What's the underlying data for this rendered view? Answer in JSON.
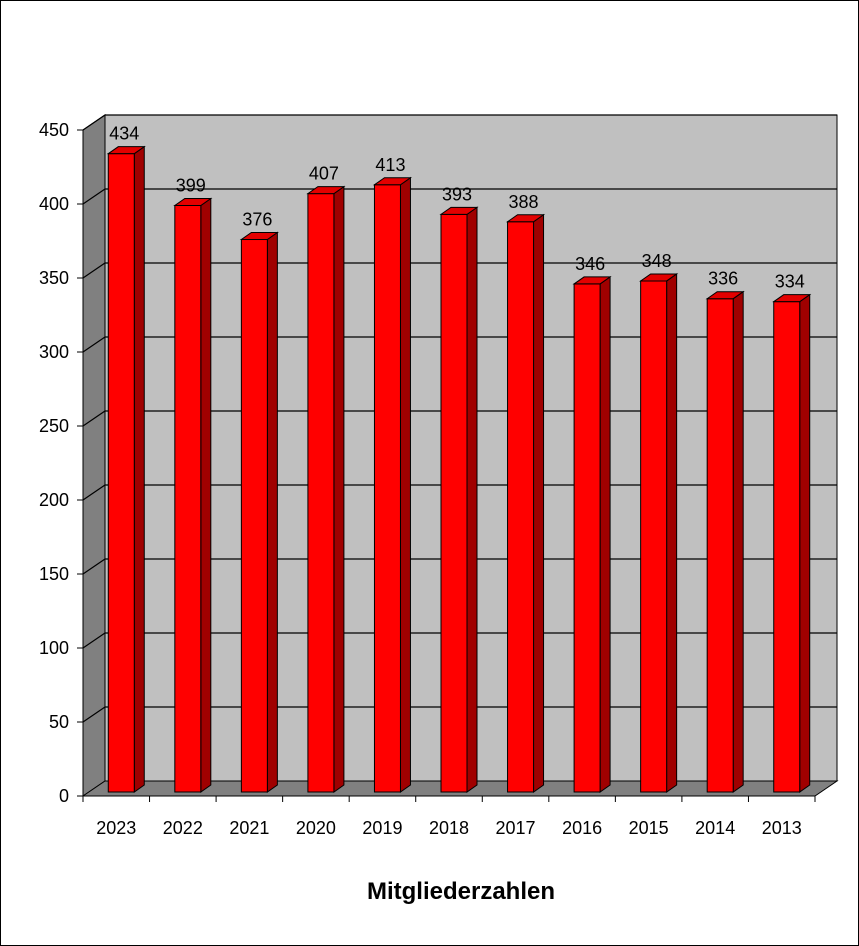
{
  "chart_data": {
    "type": "bar",
    "style": "3d-column",
    "title": "Mitgliederzahlen",
    "xlabel": "",
    "ylabel": "",
    "categories": [
      "2023",
      "2022",
      "2021",
      "2020",
      "2019",
      "2018",
      "2017",
      "2016",
      "2015",
      "2014",
      "2013"
    ],
    "series": [
      {
        "values": [
          434,
          399,
          376,
          407,
          413,
          393,
          388,
          346,
          348,
          336,
          334
        ]
      }
    ],
    "ylim": [
      0,
      450
    ],
    "yticks": [
      0,
      50,
      100,
      150,
      200,
      250,
      300,
      350,
      400,
      450
    ],
    "grid": true,
    "legend": "none",
    "data_labels": true,
    "colors": {
      "bar_front": "#ff0000",
      "bar_top": "#e30000",
      "bar_side": "#a00000",
      "wall": "#c0c0c0",
      "side_wall": "#808080",
      "floor": "#808080",
      "gridline": "#000000"
    }
  }
}
